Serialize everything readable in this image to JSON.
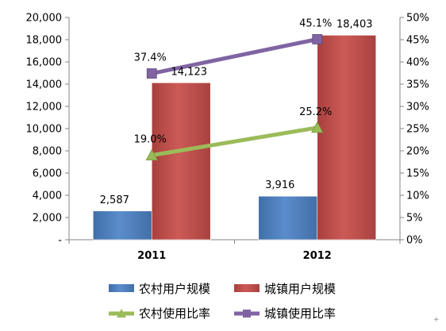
{
  "chart_data": {
    "type": "bar",
    "categories": [
      "2011",
      "2012"
    ],
    "y_left": {
      "min": 0,
      "max": 20000,
      "step": 2000,
      "tick_labels": [
        "-",
        "2,000",
        "4,000",
        "6,000",
        "8,000",
        "10,000",
        "12,000",
        "14,000",
        "16,000",
        "18,000",
        "20,000"
      ]
    },
    "y_right": {
      "min": 0,
      "max": 0.5,
      "step": 0.05,
      "tick_labels": [
        "0%",
        "5%",
        "10%",
        "15%",
        "20%",
        "25%",
        "30%",
        "35%",
        "40%",
        "45%",
        "50%"
      ]
    },
    "series": [
      {
        "name": "农村用户规模",
        "kind": "bar",
        "axis": "left",
        "color": "#4f81bd",
        "values": [
          2587,
          3916
        ],
        "labels": [
          "2,587",
          "3,916"
        ]
      },
      {
        "name": "城镇用户规模",
        "kind": "bar",
        "axis": "left",
        "color": "#c0504d",
        "values": [
          14123,
          18403
        ],
        "labels": [
          "14,123",
          "18,403"
        ]
      },
      {
        "name": "农村使用比率",
        "kind": "line",
        "axis": "right",
        "color": "#9bbb59",
        "marker": "triangle",
        "values": [
          0.19,
          0.252
        ],
        "labels": [
          "19.0%",
          "25.2%"
        ]
      },
      {
        "name": "城镇使用比率",
        "kind": "line",
        "axis": "right",
        "color": "#8064a2",
        "marker": "square",
        "values": [
          0.374,
          0.451
        ],
        "labels": [
          "37.4%",
          "45.1%"
        ]
      }
    ],
    "legend_position": "bottom",
    "grid": false
  }
}
